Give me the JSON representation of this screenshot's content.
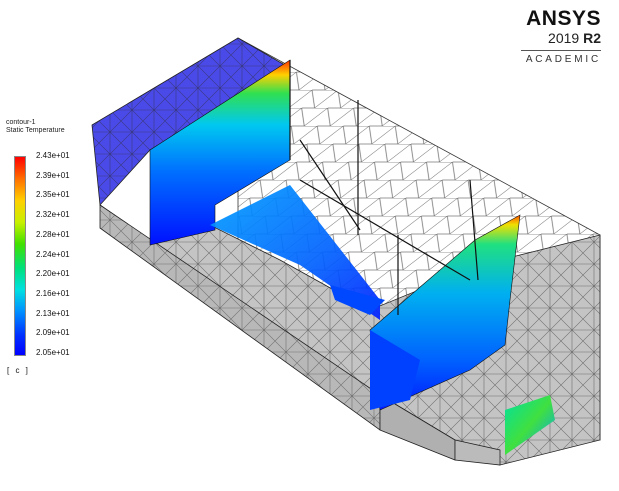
{
  "logo": {
    "brand": "ANSYS",
    "year": "2019",
    "release": "R2",
    "edition": "ACADEMIC"
  },
  "legend": {
    "contour_name": "contour-1",
    "variable": "Static Temperature",
    "ticks": [
      "2.43e+01",
      "2.39e+01",
      "2.35e+01",
      "2.32e+01",
      "2.28e+01",
      "2.24e+01",
      "2.20e+01",
      "2.16e+01",
      "2.13e+01",
      "2.09e+01",
      "2.05e+01"
    ],
    "unit": "[ c ]",
    "colors": [
      "#ff0000",
      "#ff7700",
      "#ffd000",
      "#c8f000",
      "#40e000",
      "#00e07a",
      "#00e0e0",
      "#0090ff",
      "#0030ff",
      "#0000ff"
    ]
  }
}
